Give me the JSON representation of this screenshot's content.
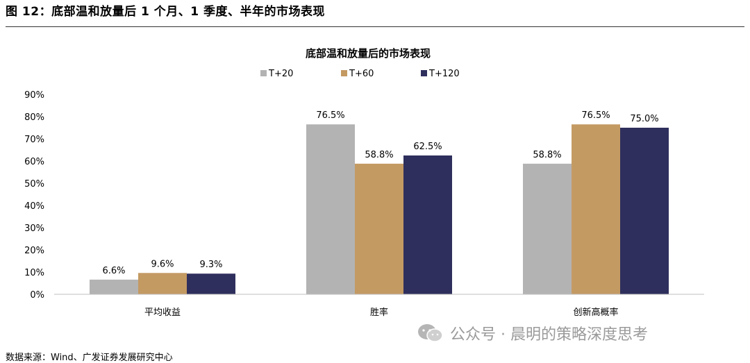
{
  "figure": {
    "title": "图 12：底部温和放量后 1 个月、1 季度、半年的市场表现",
    "source": "数据来源：Wind、广发证券发展研究中心",
    "watermark": "公众号 · 晨明的策略深度思考"
  },
  "chart_data": {
    "type": "bar",
    "title": "底部温和放量后的市场表现",
    "categories": [
      "平均收益",
      "胜率",
      "创新高概率"
    ],
    "series": [
      {
        "name": "T+20",
        "values": [
          6.6,
          76.5,
          58.8
        ],
        "labels": [
          "6.6%",
          "76.5%",
          "58.8%"
        ],
        "color": "#b3b3b3"
      },
      {
        "name": "T+60",
        "values": [
          9.6,
          58.8,
          76.5
        ],
        "labels": [
          "9.6%",
          "58.8%",
          "76.5%"
        ],
        "color": "#c49a63"
      },
      {
        "name": "T+120",
        "values": [
          9.3,
          62.5,
          75.0
        ],
        "labels": [
          "9.3%",
          "62.5%",
          "75.0%"
        ],
        "color": "#2e2f5c"
      }
    ],
    "yticks": [
      "0%",
      "10%",
      "20%",
      "30%",
      "40%",
      "50%",
      "60%",
      "70%",
      "80%",
      "90%"
    ],
    "ylim": [
      0,
      90
    ],
    "xlabel": "",
    "ylabel": "",
    "legend_position": "top-center",
    "grid": false
  }
}
